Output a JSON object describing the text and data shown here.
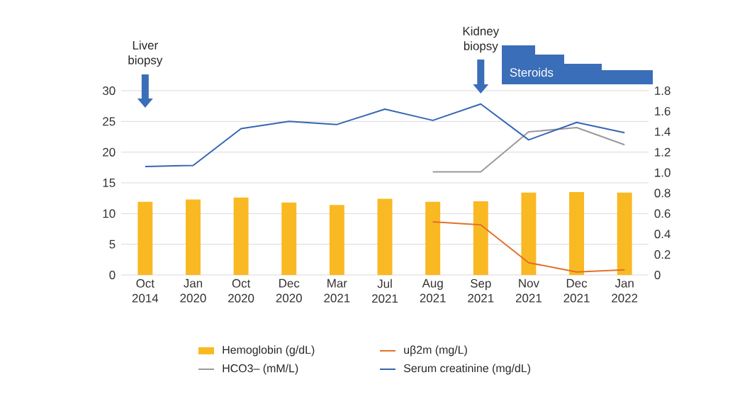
{
  "chart_data": {
    "type": "bar",
    "categories": [
      "Oct 2014",
      "Jan 2020",
      "Oct 2020",
      "Dec 2020",
      "Mar 2021",
      "Jul 2021",
      "Aug 2021",
      "Sep 2021",
      "Nov 2021",
      "Dec 2021",
      "Jan 2022"
    ],
    "series": [
      {
        "name": "Hemoglobin (g/dL)",
        "color": "#f9b923",
        "values": [
          11.9,
          12.3,
          12.6,
          11.8,
          11.4,
          12.4,
          11.9,
          12.0,
          13.4,
          13.5,
          13.4
        ]
      },
      {
        "name": "uβ2m (mg/L)",
        "type": "line",
        "axis": "y2",
        "color": "#e2702b",
        "values": [
          null,
          null,
          null,
          null,
          null,
          null,
          0.52,
          0.49,
          0.12,
          0.03,
          0.05
        ]
      },
      {
        "name": "HCO3– (mM/L)",
        "type": "line",
        "color": "#9a9a9a",
        "values": [
          null,
          null,
          null,
          null,
          null,
          null,
          16.8,
          16.8,
          23.3,
          24.0,
          21.2
        ]
      },
      {
        "name": "Serum creatinine (mg/dL)",
        "type": "line",
        "axis": "y2",
        "color": "#3467b3",
        "values": [
          1.06,
          1.07,
          1.43,
          1.5,
          1.47,
          1.62,
          1.51,
          1.67,
          1.32,
          1.49,
          1.39
        ]
      }
    ],
    "ylim": [
      0,
      30
    ],
    "yticks": [
      0,
      5,
      10,
      15,
      20,
      25,
      30
    ],
    "y2lim": [
      0,
      1.8
    ],
    "y2ticks": [
      0,
      0.2,
      0.4,
      0.6,
      0.8,
      {
        "value": 1,
        "label": "1.0"
      },
      1.2,
      1.4,
      1.6,
      1.8
    ],
    "grid": "y",
    "legend": "bottom",
    "annotations": [
      "Liver biopsy",
      "Kidney biopsy",
      "Steroids"
    ]
  }
}
